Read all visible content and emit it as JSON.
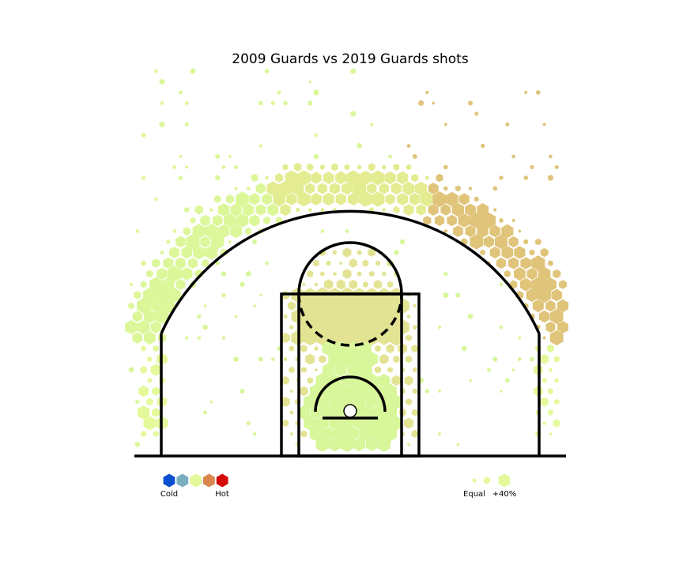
{
  "chart_data": {
    "type": "hexbin",
    "title": "2009 Guards vs 2019 Guards shots",
    "xlabel": "",
    "ylabel": "",
    "grid": false,
    "legend": {
      "color_scale": {
        "low_label": "Cold",
        "high_label": "Hot",
        "colors": [
          "#0a4fd1",
          "#7aaebf",
          "#e4f99a",
          "#d9874f",
          "#d40a0a"
        ]
      },
      "size_scale": {
        "low_label": "Equal",
        "high_label": "+40%"
      }
    },
    "zones": [
      {
        "zone": "restricted area",
        "trend": "neutral",
        "color": "#d8f69a"
      },
      {
        "zone": "paint / free-throw area",
        "trend": "slightly warm",
        "color": "#e3e394"
      },
      {
        "zone": "left corner three",
        "trend": "neutral",
        "color": "#e4f99a"
      },
      {
        "zone": "right corner three",
        "trend": "neutral",
        "color": "#e4f99a"
      },
      {
        "zone": "left wing three",
        "trend": "neutral",
        "color": "#dcf79a"
      },
      {
        "zone": "top of key three",
        "trend": "slightly warm",
        "color": "#e4ec92"
      },
      {
        "zone": "right wing three",
        "trend": "warm",
        "color": "#dfc47a"
      }
    ]
  }
}
